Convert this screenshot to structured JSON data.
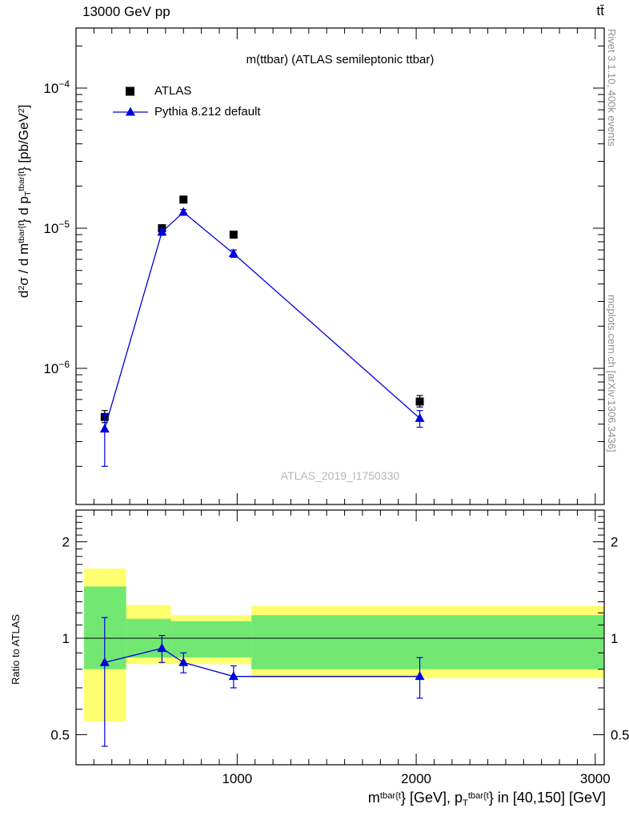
{
  "header": {
    "beam_energy": "13000 GeV pp",
    "process": "tt̄"
  },
  "main_panel": {
    "title": "m(ttbar) (ATLAS semileptonic ttbar)",
    "watermark": "ATLAS_2019_I1750330"
  },
  "side_notes": {
    "rivet": "Rivet 3.1.10,  400k events",
    "mcplots": "mcplots.cern.ch [arXiv:1306.3436]"
  },
  "legend": {
    "items": [
      {
        "label": "ATLAS",
        "marker": "square",
        "color": "#000000"
      },
      {
        "label": "Pythia 8.212 default",
        "marker": "triangle-line",
        "color": "#0000dd"
      }
    ]
  },
  "axes": {
    "x": {
      "title_parts": [
        {
          "t": "m"
        },
        {
          "t": "tbar{t",
          "s": "sup"
        },
        {
          "t": "} [GeV], p"
        },
        {
          "t": "T",
          "s": "sub"
        },
        {
          "t": "tbar{t",
          "s": "sup"
        },
        {
          "t": "} in [40,150] [GeV]"
        }
      ],
      "min": 100,
      "max": 3050,
      "major_ticks": [
        1000,
        2000,
        3000
      ],
      "major_tick_labels": [
        "1000",
        "2000",
        "3000"
      ],
      "minor_tick_step": 100
    },
    "y_main": {
      "title_parts": [
        {
          "t": "d"
        },
        {
          "t": "2",
          "s": "sup"
        },
        {
          "t": "σ / d m"
        },
        {
          "t": "tbar{t",
          "s": "sup"
        },
        {
          "t": "} d p"
        },
        {
          "t": "T",
          "s": "sub"
        },
        {
          "t": "tbar{t",
          "s": "sup"
        },
        {
          "t": "} [pb/GeV"
        },
        {
          "t": "2",
          "s": "sup"
        },
        {
          "t": "]"
        }
      ],
      "scale": "log",
      "min": 1.1e-07,
      "max": 0.00027,
      "decade_exponents": [
        -6,
        -5,
        -4
      ]
    },
    "y_ratio": {
      "title": "Ratio to ATLAS",
      "scale": "log",
      "min": 0.4,
      "max": 2.5,
      "major_ticks": [
        0.5,
        1,
        2
      ],
      "major_tick_labels": [
        "0.5",
        "1",
        "2"
      ]
    }
  },
  "chart_data": {
    "type": "line",
    "title": "m(ttbar) (ATLAS semileptonic ttbar)",
    "xlabel": "m^tbar{t} [GeV], p_T^tbar{t} in [40,150] [GeV]",
    "ylabel": "d2sigma / d m^tbar{t} d p_T^tbar{t} [pb/GeV^2]",
    "x_range": [
      100,
      3050
    ],
    "y_range_main": [
      1.1e-07,
      0.00027
    ],
    "y_range_ratio": [
      0.4,
      2.5
    ],
    "series": [
      {
        "name": "ATLAS",
        "marker": "square",
        "color": "#000000",
        "x": [
          260,
          580,
          700,
          980,
          2020
        ],
        "y": [
          4.5e-07,
          1e-05,
          1.6e-05,
          9e-06,
          5.8e-07
        ],
        "y_lo": [
          4.1e-07,
          9.6e-06,
          1.55e-05,
          8.6e-06,
          5.3e-07
        ],
        "y_hi": [
          5e-07,
          1.04e-05,
          1.65e-05,
          9.4e-06,
          6.4e-07
        ]
      },
      {
        "name": "Pythia 8.212 default",
        "marker": "triangle",
        "color": "#0000dd",
        "line": true,
        "x": [
          260,
          580,
          700,
          980,
          2020
        ],
        "y": [
          3.7e-07,
          9.4e-06,
          1.3e-05,
          6.6e-06,
          4.4e-07
        ],
        "y_lo": [
          2e-07,
          8.9e-06,
          1.24e-05,
          6.2e-06,
          3.8e-07
        ],
        "y_hi": [
          4.7e-07,
          9.9e-06,
          1.36e-05,
          7e-06,
          5e-07
        ]
      }
    ],
    "ratio": {
      "name": "Pythia / ATLAS",
      "x": [
        260,
        580,
        700,
        980,
        2020
      ],
      "y": [
        0.84,
        0.93,
        0.84,
        0.76,
        0.76
      ],
      "y_lo": [
        0.46,
        0.84,
        0.78,
        0.7,
        0.65
      ],
      "y_hi": [
        1.16,
        1.02,
        0.9,
        0.82,
        0.87
      ],
      "reference_line": 1.0,
      "bands": [
        {
          "x1": 145,
          "x2": 380,
          "yellow_lo": 0.55,
          "yellow_hi": 1.65,
          "green_lo": 0.8,
          "green_hi": 1.45
        },
        {
          "x1": 380,
          "x2": 630,
          "yellow_lo": 0.83,
          "yellow_hi": 1.27,
          "green_lo": 0.87,
          "green_hi": 1.15
        },
        {
          "x1": 630,
          "x2": 1080,
          "yellow_lo": 0.83,
          "yellow_hi": 1.18,
          "green_lo": 0.87,
          "green_hi": 1.13
        },
        {
          "x1": 1080,
          "x2": 3050,
          "yellow_lo": 0.75,
          "yellow_hi": 1.26,
          "green_lo": 0.8,
          "green_hi": 1.18
        }
      ]
    },
    "colors": {
      "band_yellow": "#ffff70",
      "band_green": "#72e872",
      "pythia_blue": "#0000dd"
    }
  }
}
